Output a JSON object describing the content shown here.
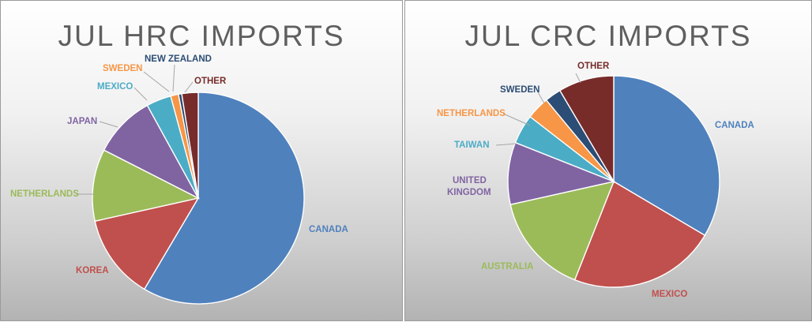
{
  "colors": {
    "blue": "#4f81bd",
    "red": "#c0504d",
    "green": "#9bbb59",
    "purple": "#8064a2",
    "aqua": "#4bacc6",
    "orange": "#f79646",
    "navy": "#2c4d75",
    "maroon": "#772c2a"
  },
  "chart_data": [
    {
      "type": "pie",
      "title": "JUL HRC IMPORTS",
      "start_angle_deg": 0,
      "direction": "clockwise",
      "slices": [
        {
          "label": "CANADA",
          "value": 58.5,
          "color": "#4f81bd"
        },
        {
          "label": "KOREA",
          "value": 13.0,
          "color": "#c0504d"
        },
        {
          "label": "NETHERLANDS",
          "value": 11.0,
          "color": "#9bbb59"
        },
        {
          "label": "JAPAN",
          "value": 9.5,
          "color": "#8064a2"
        },
        {
          "label": "MEXICO",
          "value": 3.8,
          "color": "#4bacc6"
        },
        {
          "label": "SWEDEN",
          "value": 1.2,
          "color": "#f79646"
        },
        {
          "label": "NEW ZEALAND",
          "value": 0.5,
          "color": "#2c4d75"
        },
        {
          "label": "OTHER",
          "value": 2.5,
          "color": "#772c2a"
        }
      ]
    },
    {
      "type": "pie",
      "title": "JUL CRC IMPORTS",
      "start_angle_deg": 0,
      "direction": "clockwise",
      "slices": [
        {
          "label": "CANADA",
          "value": 33.5,
          "color": "#4f81bd"
        },
        {
          "label": "MEXICO",
          "value": 22.5,
          "color": "#c0504d"
        },
        {
          "label": "AUSTRALIA",
          "value": 15.5,
          "color": "#9bbb59"
        },
        {
          "label": "UNITED KINGDOM",
          "value": 9.5,
          "color": "#8064a2"
        },
        {
          "label": "TAIWAN",
          "value": 4.5,
          "color": "#4bacc6"
        },
        {
          "label": "NETHERLANDS",
          "value": 3.5,
          "color": "#f79646"
        },
        {
          "label": "SWEDEN",
          "value": 2.5,
          "color": "#2c4d75"
        },
        {
          "label": "OTHER",
          "value": 8.5,
          "color": "#772c2a"
        }
      ]
    }
  ]
}
